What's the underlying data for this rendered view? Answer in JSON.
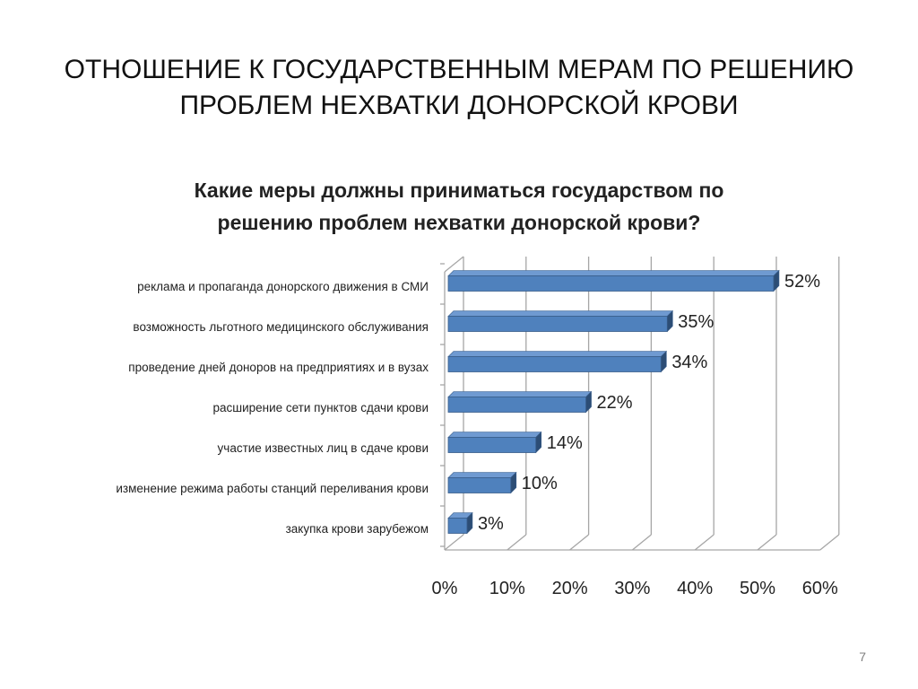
{
  "slide": {
    "title_line1": "ОТНОШЕНИЕ К ГОСУДАРСТВЕННЫМ МЕРАМ ПО РЕШЕНИЮ",
    "title_line2": "ПРОБЛЕМ НЕХВАТКИ ДОНОРСКОЙ КРОВИ",
    "page_number": "7"
  },
  "chart_data": {
    "type": "bar",
    "orientation": "horizontal",
    "three_d": true,
    "title_lines": [
      "Какие меры должны приниматься государством по",
      "решению проблем нехватки донорской крови?"
    ],
    "categories": [
      "реклама и пропаганда донорского движения в СМИ",
      "возможность льготного медицинского обслуживания",
      "проведение дней доноров на предприятиях и в вузах",
      "расширение сети пунктов сдачи крови",
      "участие известных лиц в сдаче крови",
      "изменение режима работы станций переливания крови",
      "закупка крови зарубежом"
    ],
    "values": [
      52,
      35,
      34,
      22,
      14,
      10,
      3
    ],
    "data_labels": [
      "52%",
      "35%",
      "34%",
      "22%",
      "14%",
      "10%",
      "3%"
    ],
    "xlim": [
      0,
      60
    ],
    "x_ticks": [
      "0%",
      "10%",
      "20%",
      "30%",
      "40%",
      "50%",
      "60%"
    ],
    "grid": true,
    "legend": "none",
    "colors": {
      "bar_front": "#4f81bd",
      "bar_top": "#6f9ad1",
      "bar_side": "#2c4d75",
      "bar_edge": "#385d8a",
      "grid": "#a6a6a6"
    }
  }
}
